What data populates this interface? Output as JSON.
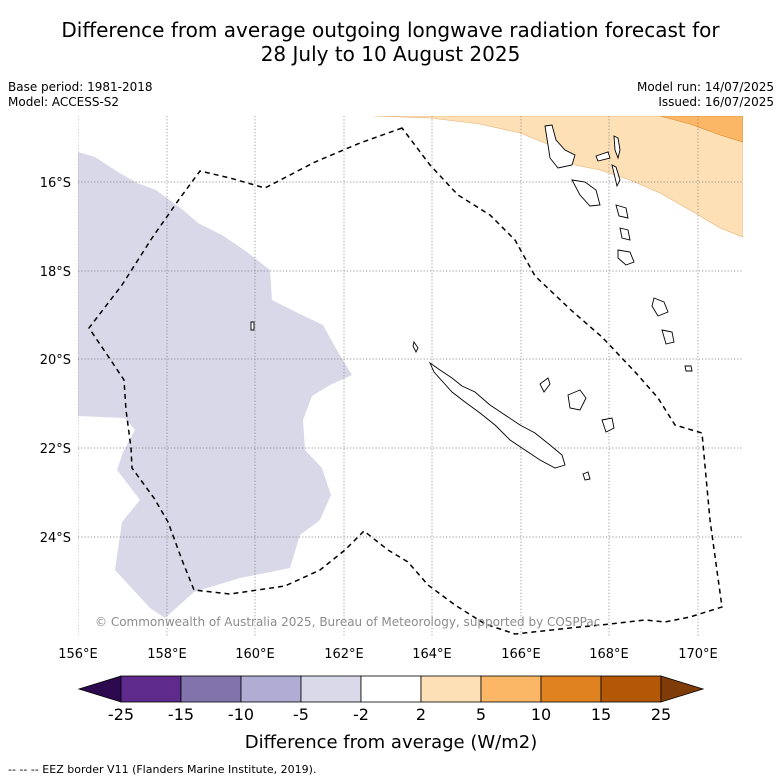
{
  "title_line1": "Difference from average outgoing longwave radiation forecast for",
  "title_line2": "28 July to 10 August 2025",
  "base_period": "Base period: 1981-2018",
  "model": "Model: ACCESS-S2",
  "model_run": "Model run: 14/07/2025",
  "issued": "Issued: 16/07/2025",
  "lat_labels": [
    "16°S",
    "18°S",
    "20°S",
    "22°S",
    "24°S"
  ],
  "lon_labels": [
    "156°E",
    "158°E",
    "160°E",
    "162°E",
    "164°E",
    "166°E",
    "168°E",
    "170°E"
  ],
  "credit": "© Commonwealth of Australia 2025, Bureau of Meteorology, supported by COSPPac",
  "colorbar": {
    "title": "Difference from average (W/m2)",
    "labels": [
      "-25",
      "-15",
      "-10",
      "-5",
      "-2",
      "2",
      "5",
      "10",
      "15",
      "25"
    ],
    "colors": [
      "#2d0a4f",
      "#5e2a8c",
      "#8174ad",
      "#b1acd4",
      "#d9d9ea",
      "#ffffff",
      "#fde0b6",
      "#fbb766",
      "#e0821f",
      "#b35806",
      "#7f3b08"
    ]
  },
  "footnote": "--  --  -- EEZ border V11 (Flanders Marine Institute, 2019).",
  "colors": {
    "negative_anomaly": "#d8d8e9",
    "positive_light": "#fde0b6",
    "positive_mid": "#fbb766",
    "grid": "#666666"
  }
}
